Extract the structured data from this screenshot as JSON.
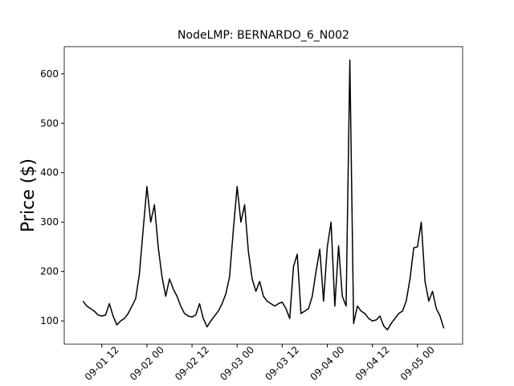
{
  "chart_data": {
    "type": "line",
    "title": "NodeLMP: BERNARDO_6_N002",
    "ylabel": "Price ($)",
    "x": [
      "09-01 07",
      "09-01 08",
      "09-01 09",
      "09-01 10",
      "09-01 11",
      "09-01 12",
      "09-01 13",
      "09-01 14",
      "09-01 15",
      "09-01 16",
      "09-01 17",
      "09-01 18",
      "09-01 19",
      "09-01 20",
      "09-01 21",
      "09-01 22",
      "09-01 23",
      "09-02 00",
      "09-02 01",
      "09-02 02",
      "09-02 03",
      "09-02 04",
      "09-02 05",
      "09-02 06",
      "09-02 07",
      "09-02 08",
      "09-02 09",
      "09-02 10",
      "09-02 11",
      "09-02 12",
      "09-02 13",
      "09-02 14",
      "09-02 15",
      "09-02 16",
      "09-02 17",
      "09-02 18",
      "09-02 19",
      "09-02 20",
      "09-02 21",
      "09-02 22",
      "09-02 23",
      "09-03 00",
      "09-03 01",
      "09-03 02",
      "09-03 03",
      "09-03 04",
      "09-03 05",
      "09-03 06",
      "09-03 07",
      "09-03 08",
      "09-03 09",
      "09-03 10",
      "09-03 11",
      "09-03 12",
      "09-03 13",
      "09-03 14",
      "09-03 15",
      "09-03 16",
      "09-03 17",
      "09-03 18",
      "09-03 19",
      "09-03 20",
      "09-03 21",
      "09-03 22",
      "09-03 23",
      "09-04 00",
      "09-04 01",
      "09-04 02",
      "09-04 03",
      "09-04 04",
      "09-04 05",
      "09-04 06",
      "09-04 07",
      "09-04 08",
      "09-04 09",
      "09-04 10",
      "09-04 11",
      "09-04 12",
      "09-04 13",
      "09-04 14",
      "09-04 15",
      "09-04 16",
      "09-04 17",
      "09-04 18",
      "09-04 19",
      "09-04 20",
      "09-04 21",
      "09-04 22",
      "09-04 23",
      "09-05 00",
      "09-05 01",
      "09-05 02",
      "09-05 03",
      "09-05 04",
      "09-05 05",
      "09-05 06",
      "09-05 07"
    ],
    "series": [
      {
        "name": "BERNARDO_6_N002",
        "color": "#000000",
        "values": [
          140,
          130,
          125,
          120,
          112,
          110,
          112,
          135,
          110,
          92,
          100,
          105,
          115,
          130,
          145,
          195,
          285,
          372,
          300,
          335,
          250,
          190,
          150,
          185,
          165,
          150,
          130,
          115,
          110,
          108,
          112,
          135,
          105,
          88,
          100,
          110,
          120,
          135,
          155,
          190,
          285,
          372,
          300,
          335,
          240,
          185,
          160,
          180,
          150,
          140,
          135,
          130,
          135,
          138,
          125,
          105,
          210,
          235,
          115,
          120,
          125,
          150,
          200,
          245,
          140,
          250,
          300,
          130,
          252,
          150,
          130,
          628,
          95,
          130,
          120,
          115,
          105,
          100,
          102,
          110,
          90,
          82,
          95,
          105,
          115,
          120,
          140,
          185,
          248,
          250,
          300,
          180,
          140,
          160,
          125,
          110,
          85
        ]
      }
    ],
    "xlim": [
      "09-01 02",
      "09-05 12"
    ],
    "xticks": [
      "09-01 12",
      "09-02 00",
      "09-02 12",
      "09-03 00",
      "09-03 12",
      "09-04 00",
      "09-04 12",
      "09-05 00"
    ],
    "ylim": [
      53,
      655
    ],
    "yticks": [
      100,
      200,
      300,
      400,
      500,
      600
    ]
  }
}
